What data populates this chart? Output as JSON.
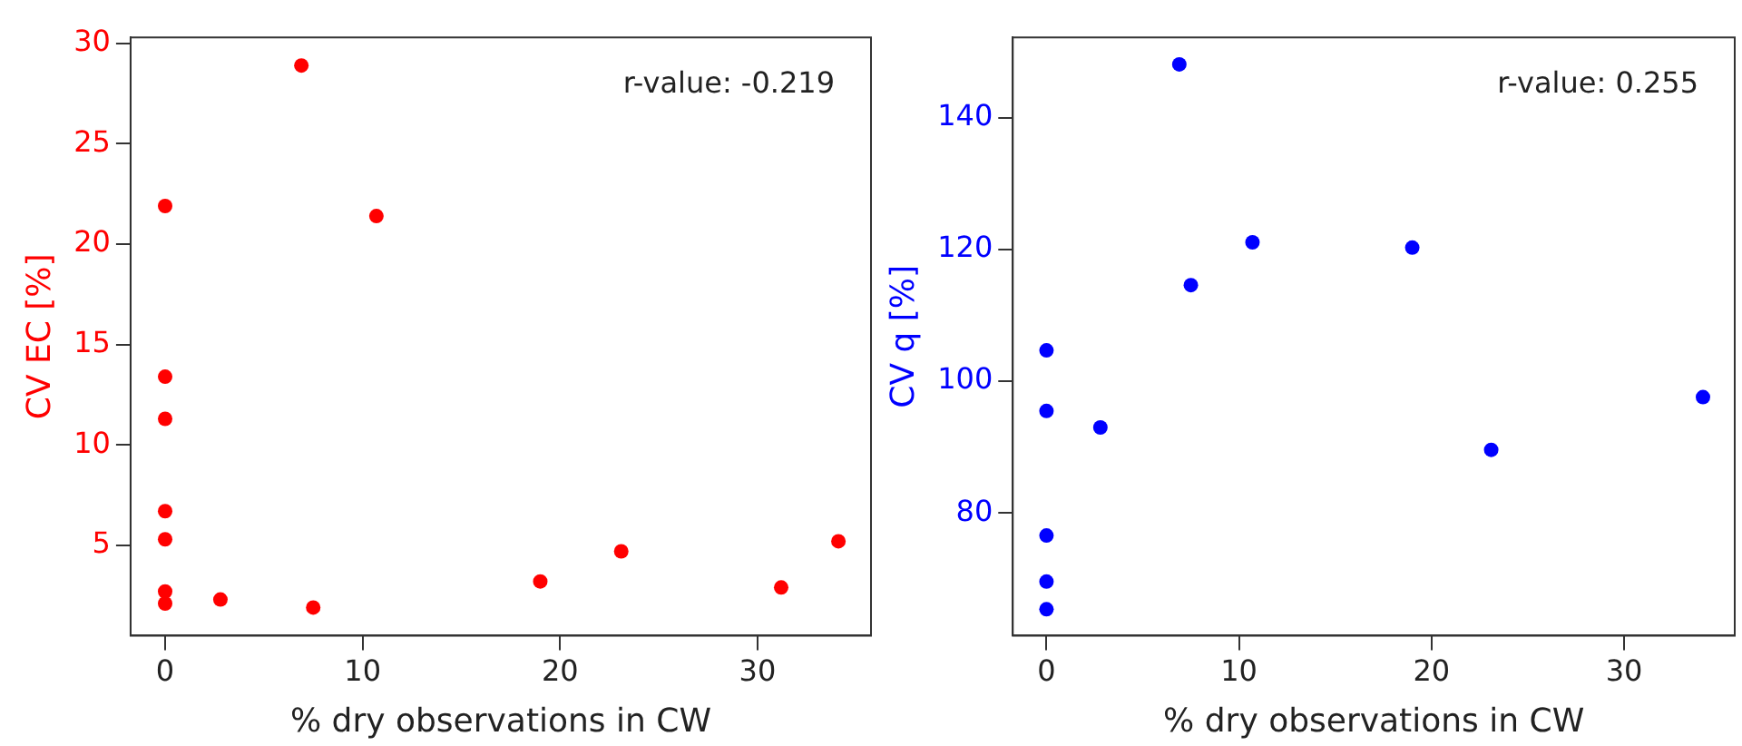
{
  "chart_data": [
    {
      "type": "scatter",
      "xlabel": "% dry observations in CW",
      "ylabel": "CV EC [%]",
      "annotations": [
        "r-value: -0.219"
      ],
      "x": [
        0,
        0,
        0,
        0,
        0,
        0,
        0,
        2.8,
        6.9,
        7.5,
        10.7,
        19.0,
        23.1,
        31.2,
        34.1
      ],
      "values": [
        21.9,
        13.4,
        11.3,
        6.7,
        5.3,
        2.7,
        2.1,
        2.3,
        28.9,
        1.9,
        21.4,
        3.2,
        4.7,
        2.9,
        5.2
      ],
      "color": "#ff0000",
      "xlim": [
        -1.75,
        35.75
      ],
      "ylim": [
        0.5,
        30.3
      ],
      "xticks": [
        0,
        10,
        20,
        30
      ],
      "yticks": [
        5,
        10,
        15,
        20,
        25,
        30
      ],
      "grid": false,
      "legend": false,
      "marker": "circle"
    },
    {
      "type": "scatter",
      "xlabel": "% dry observations in CW",
      "ylabel": "CV q [%]",
      "annotations": [
        "r-value: 0.255"
      ],
      "x": [
        0,
        0,
        0,
        0,
        0,
        2.8,
        6.9,
        7.5,
        10.7,
        19.0,
        23.1,
        34.1
      ],
      "values": [
        104.7,
        95.5,
        76.6,
        69.6,
        65.4,
        93.0,
        148.1,
        114.6,
        121.1,
        120.3,
        89.6,
        97.6
      ],
      "color": "#0000ff",
      "xlim": [
        -1.75,
        35.75
      ],
      "ylim": [
        61.4,
        152.2
      ],
      "xticks": [
        0,
        10,
        20,
        30
      ],
      "yticks": [
        80,
        100,
        120,
        140
      ],
      "grid": false,
      "legend": false,
      "marker": "circle"
    }
  ]
}
